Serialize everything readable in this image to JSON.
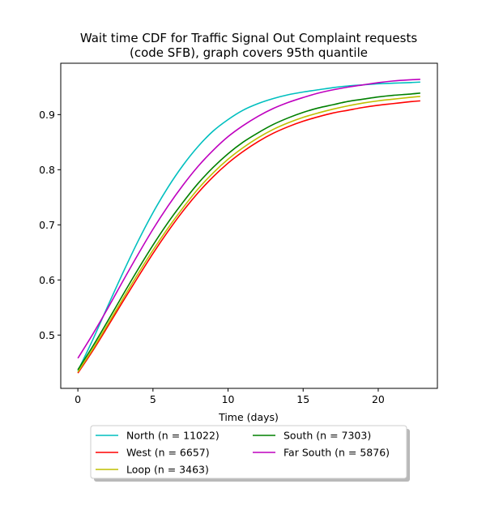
{
  "chart_data": {
    "type": "line",
    "title": "Wait time CDF for Traffic Signal Out Complaint  requests",
    "subtitle": "(code SFB), graph covers 95th quantile",
    "xlabel": "Time (days)",
    "ylabel": "",
    "xlim": [
      -1.14,
      23.94
    ],
    "ylim": [
      0.4033,
      0.9932
    ],
    "xticks": [
      0,
      5,
      10,
      15,
      20
    ],
    "yticks": [
      0.5,
      0.6,
      0.7,
      0.8,
      0.9
    ],
    "grid": false,
    "legend_placement": "below plot, two columns",
    "x": [
      0,
      1,
      2,
      3,
      4,
      5,
      6,
      7,
      8,
      9,
      10,
      11,
      12,
      13,
      14,
      15,
      16,
      17,
      18,
      19,
      20,
      21,
      22,
      22.8
    ],
    "series": [
      {
        "name": "North (n = 11022)",
        "color": "#00bfbf",
        "values": [
          0.435,
          0.492,
          0.553,
          0.613,
          0.67,
          0.722,
          0.768,
          0.808,
          0.842,
          0.87,
          0.891,
          0.908,
          0.92,
          0.929,
          0.936,
          0.941,
          0.945,
          0.949,
          0.952,
          0.954,
          0.956,
          0.957,
          0.958,
          0.959
        ]
      },
      {
        "name": "West (n = 6657)",
        "color": "#ff0000",
        "values": [
          0.431,
          0.472,
          0.516,
          0.561,
          0.605,
          0.648,
          0.688,
          0.725,
          0.758,
          0.787,
          0.812,
          0.833,
          0.851,
          0.866,
          0.878,
          0.888,
          0.896,
          0.903,
          0.908,
          0.913,
          0.917,
          0.92,
          0.923,
          0.925
        ]
      },
      {
        "name": "Loop (n = 3463)",
        "color": "#bfbf00",
        "values": [
          0.433,
          0.475,
          0.52,
          0.566,
          0.611,
          0.654,
          0.694,
          0.731,
          0.765,
          0.794,
          0.819,
          0.84,
          0.858,
          0.873,
          0.885,
          0.895,
          0.903,
          0.91,
          0.916,
          0.921,
          0.925,
          0.928,
          0.931,
          0.933
        ]
      },
      {
        "name": "South (n = 7303)",
        "color": "#008000",
        "values": [
          0.437,
          0.48,
          0.526,
          0.573,
          0.619,
          0.663,
          0.704,
          0.741,
          0.775,
          0.804,
          0.829,
          0.85,
          0.867,
          0.882,
          0.894,
          0.904,
          0.912,
          0.918,
          0.924,
          0.928,
          0.932,
          0.935,
          0.937,
          0.939
        ]
      },
      {
        "name": "Far South (n = 5876)",
        "color": "#bf00bf",
        "values": [
          0.458,
          0.502,
          0.549,
          0.598,
          0.646,
          0.692,
          0.734,
          0.772,
          0.806,
          0.835,
          0.86,
          0.88,
          0.897,
          0.911,
          0.922,
          0.931,
          0.939,
          0.945,
          0.95,
          0.954,
          0.958,
          0.961,
          0.963,
          0.964
        ]
      }
    ]
  }
}
